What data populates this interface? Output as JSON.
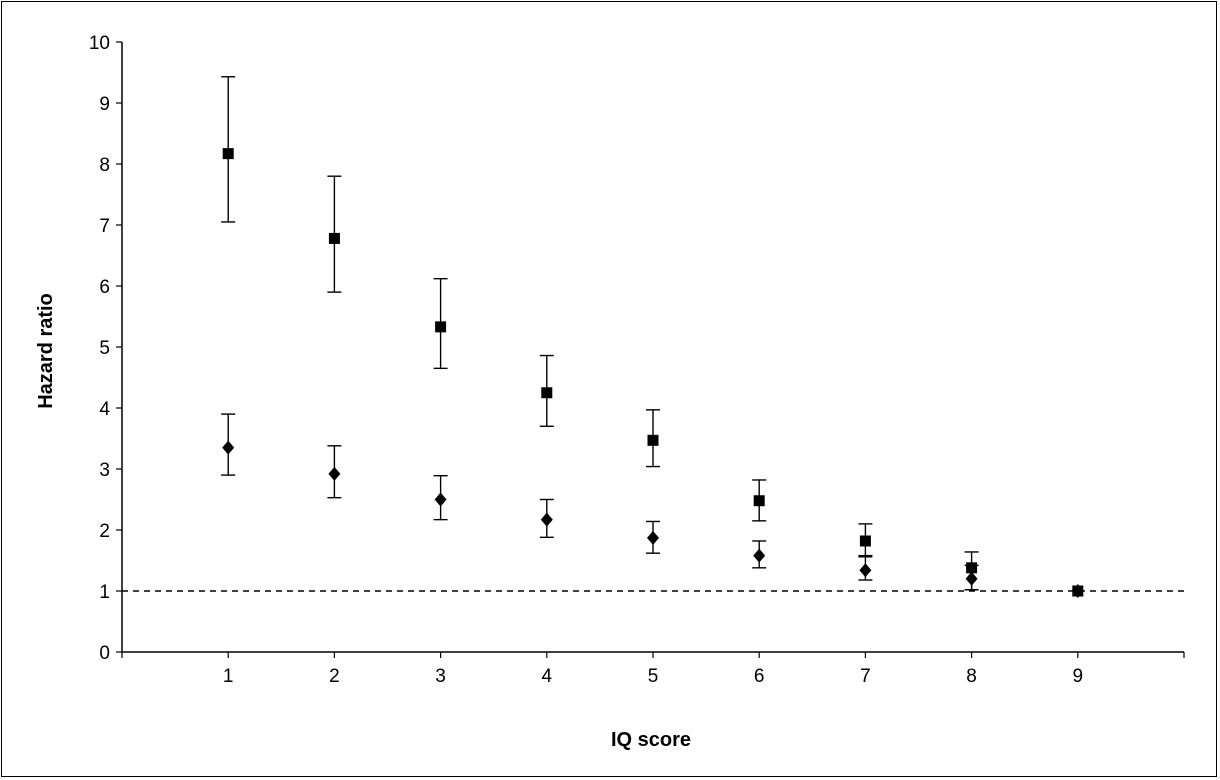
{
  "chart_data": {
    "type": "scatter",
    "title": "",
    "xlabel": "IQ score",
    "ylabel": "Hazard ratio",
    "xlim": [
      0,
      10
    ],
    "ylim": [
      0,
      10
    ],
    "x_ticks": [
      1,
      2,
      3,
      4,
      5,
      6,
      7,
      8,
      9
    ],
    "y_ticks": [
      0,
      1,
      2,
      3,
      4,
      5,
      6,
      7,
      8,
      9,
      10
    ],
    "grid": false,
    "reference_line": {
      "y": 1,
      "style": "dashed"
    },
    "series": [
      {
        "marker": "square",
        "color": "#000000",
        "x": [
          1,
          2,
          3,
          4,
          5,
          6,
          7,
          8,
          9
        ],
        "y": [
          8.17,
          6.78,
          5.33,
          4.25,
          3.47,
          2.48,
          1.82,
          1.38,
          1.0
        ],
        "lower": [
          7.05,
          5.9,
          4.65,
          3.7,
          3.04,
          2.15,
          1.58,
          1.02,
          null
        ],
        "upper": [
          9.43,
          7.8,
          6.12,
          4.86,
          3.97,
          2.82,
          2.1,
          1.64,
          null
        ]
      },
      {
        "marker": "diamond",
        "color": "#000000",
        "x": [
          1,
          2,
          3,
          4,
          5,
          6,
          7,
          8,
          9
        ],
        "y": [
          3.35,
          2.92,
          2.5,
          2.17,
          1.87,
          1.58,
          1.34,
          1.2,
          1.0
        ],
        "lower": [
          2.9,
          2.53,
          2.17,
          1.88,
          1.62,
          1.38,
          1.18,
          1.02,
          null
        ],
        "upper": [
          3.9,
          3.38,
          2.89,
          2.5,
          2.14,
          1.82,
          1.56,
          1.42,
          null
        ]
      }
    ]
  }
}
